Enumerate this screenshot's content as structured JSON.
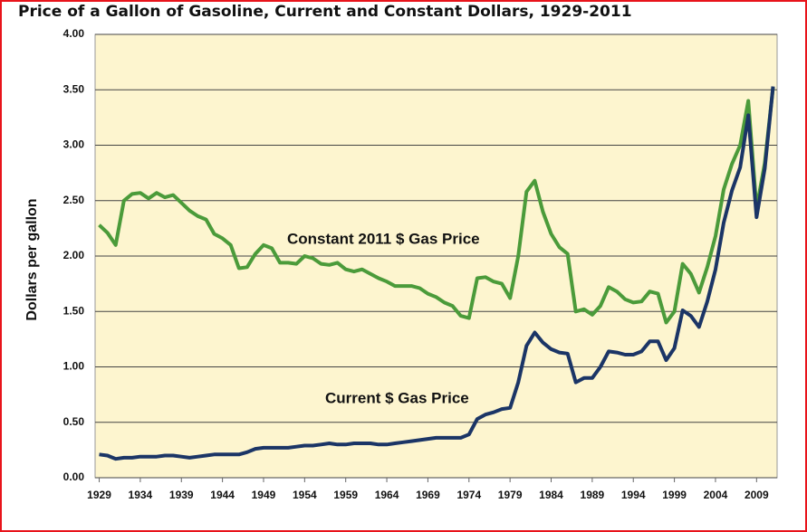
{
  "chart_data": {
    "type": "line",
    "title": "Price of a Gallon of Gasoline, Current and Constant Dollars, 1929-2011",
    "y_label": "Dollars per gallon",
    "x": [
      1929,
      1930,
      1931,
      1932,
      1933,
      1934,
      1935,
      1936,
      1937,
      1938,
      1939,
      1940,
      1941,
      1942,
      1943,
      1944,
      1945,
      1946,
      1947,
      1948,
      1949,
      1950,
      1951,
      1952,
      1953,
      1954,
      1955,
      1956,
      1957,
      1958,
      1959,
      1960,
      1961,
      1962,
      1963,
      1964,
      1965,
      1966,
      1967,
      1968,
      1969,
      1970,
      1971,
      1972,
      1973,
      1974,
      1975,
      1976,
      1977,
      1978,
      1979,
      1980,
      1981,
      1982,
      1983,
      1984,
      1985,
      1986,
      1987,
      1988,
      1989,
      1990,
      1991,
      1992,
      1993,
      1994,
      1995,
      1996,
      1997,
      1998,
      1999,
      2000,
      2001,
      2002,
      2003,
      2004,
      2005,
      2006,
      2007,
      2008,
      2009,
      2010,
      2011
    ],
    "series": [
      {
        "name": "Constant 2011 $ Gas Price",
        "color": "#4b9b3a",
        "values": [
          2.28,
          2.21,
          2.1,
          2.5,
          2.56,
          2.57,
          2.52,
          2.57,
          2.53,
          2.55,
          2.48,
          2.41,
          2.36,
          2.33,
          2.2,
          2.16,
          2.1,
          1.89,
          1.9,
          2.02,
          2.1,
          2.07,
          1.94,
          1.94,
          1.93,
          2.0,
          1.98,
          1.93,
          1.92,
          1.94,
          1.88,
          1.86,
          1.88,
          1.84,
          1.8,
          1.77,
          1.73,
          1.73,
          1.73,
          1.71,
          1.66,
          1.63,
          1.58,
          1.55,
          1.46,
          1.44,
          1.8,
          1.81,
          1.77,
          1.75,
          1.62,
          2.0,
          2.58,
          2.68,
          2.4,
          2.2,
          2.08,
          2.02,
          1.5,
          1.52,
          1.47,
          1.55,
          1.72,
          1.68,
          1.61,
          1.58,
          1.59,
          1.68,
          1.66,
          1.4,
          1.5,
          1.93,
          1.84,
          1.67,
          1.9,
          2.18,
          2.6,
          2.83,
          3.0,
          3.4,
          2.43,
          2.84,
          3.52
        ]
      },
      {
        "name": "Current $ Gas Price",
        "color": "#1b3566",
        "values": [
          0.21,
          0.2,
          0.17,
          0.18,
          0.18,
          0.19,
          0.19,
          0.19,
          0.2,
          0.2,
          0.19,
          0.18,
          0.19,
          0.2,
          0.21,
          0.21,
          0.21,
          0.21,
          0.23,
          0.26,
          0.27,
          0.27,
          0.27,
          0.27,
          0.28,
          0.29,
          0.29,
          0.3,
          0.31,
          0.3,
          0.3,
          0.31,
          0.31,
          0.31,
          0.3,
          0.3,
          0.31,
          0.32,
          0.33,
          0.34,
          0.35,
          0.36,
          0.36,
          0.36,
          0.36,
          0.39,
          0.53,
          0.57,
          0.59,
          0.62,
          0.63,
          0.86,
          1.19,
          1.31,
          1.22,
          1.16,
          1.13,
          1.12,
          0.86,
          0.9,
          0.9,
          1.0,
          1.14,
          1.13,
          1.11,
          1.11,
          1.14,
          1.23,
          1.23,
          1.06,
          1.17,
          1.51,
          1.46,
          1.36,
          1.59,
          1.88,
          2.3,
          2.59,
          2.8,
          3.27,
          2.35,
          2.79,
          3.53
        ]
      }
    ],
    "xlim": [
      1928.5,
      2011.5
    ],
    "xticks": [
      1929,
      1934,
      1939,
      1944,
      1949,
      1954,
      1959,
      1964,
      1969,
      1974,
      1979,
      1984,
      1989,
      1994,
      1999,
      2004,
      2009
    ],
    "ylim": [
      0,
      4
    ],
    "yticks": [
      {
        "value": 0,
        "label": "0.00"
      },
      {
        "value": 0.5,
        "label": "0.50"
      },
      {
        "value": 1,
        "label": "1.00"
      },
      {
        "value": 1.5,
        "label": "1.50"
      },
      {
        "value": 2,
        "label": "2.00"
      },
      {
        "value": 2.5,
        "label": "2.50"
      },
      {
        "value": 3,
        "label": "3.00"
      },
      {
        "value": 3.5,
        "label": "3.50"
      },
      {
        "value": 4,
        "label": "4.00"
      }
    ],
    "grid": true,
    "plot_background": "#fdf5cf"
  }
}
